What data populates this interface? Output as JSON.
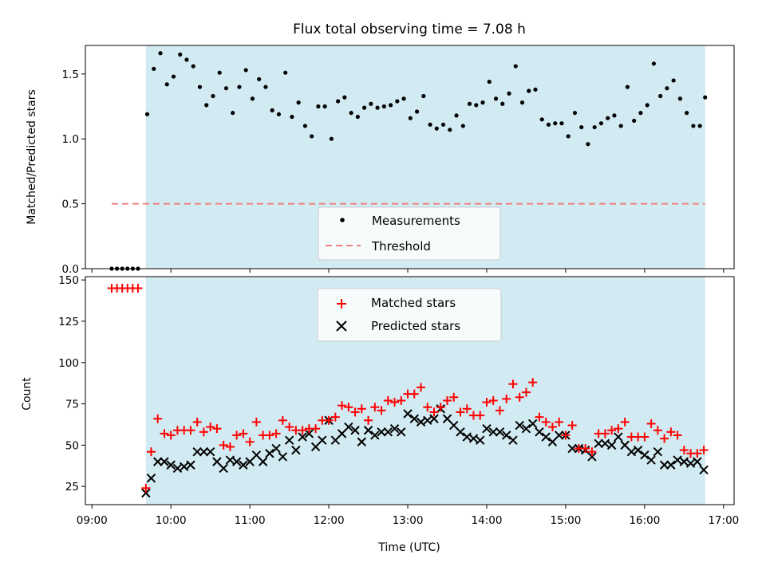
{
  "chart_data": [
    {
      "type": "scatter",
      "title": "Flux total observing time = 7.08 h",
      "xlabel": "",
      "ylabel": "Matched/Predicted stars",
      "ylim": [
        0,
        1.72
      ],
      "yticks": [
        "0.0",
        "0.5",
        "1.0",
        "1.5"
      ],
      "ytick_values": [
        0,
        0.5,
        1.0,
        1.5
      ],
      "shaded_interval": [
        "09:41",
        "16:46"
      ],
      "shaded_color": "#add8e6",
      "legend_position": "lower-center",
      "series": [
        {
          "name": "Measurements",
          "marker": "dot",
          "color": "#000000",
          "x": [
            "09:15",
            "09:19",
            "09:23",
            "09:27",
            "09:31",
            "09:35",
            "09:42",
            "09:47",
            "09:52",
            "09:57",
            "10:02",
            "10:07",
            "10:12",
            "10:17",
            "10:22",
            "10:27",
            "10:32",
            "10:37",
            "10:42",
            "10:47",
            "10:52",
            "10:57",
            "11:02",
            "11:07",
            "11:12",
            "11:17",
            "11:22",
            "11:27",
            "11:32",
            "11:37",
            "11:42",
            "11:47",
            "11:52",
            "11:57",
            "12:02",
            "12:07",
            "12:12",
            "12:17",
            "12:22",
            "12:27",
            "12:32",
            "12:37",
            "12:42",
            "12:47",
            "12:52",
            "12:57",
            "13:02",
            "13:07",
            "13:12",
            "13:17",
            "13:22",
            "13:27",
            "13:32",
            "13:37",
            "13:42",
            "13:47",
            "13:52",
            "13:57",
            "14:02",
            "14:07",
            "14:12",
            "14:17",
            "14:22",
            "14:27",
            "14:32",
            "14:37",
            "14:42",
            "14:47",
            "14:52",
            "14:57",
            "15:02",
            "15:07",
            "15:12",
            "15:17",
            "15:22",
            "15:27",
            "15:32",
            "15:37",
            "15:42",
            "15:47",
            "15:52",
            "15:57",
            "16:02",
            "16:07",
            "16:12",
            "16:17",
            "16:22",
            "16:27",
            "16:32",
            "16:37",
            "16:42",
            "16:46"
          ],
          "y": [
            0,
            0,
            0,
            0,
            0,
            0,
            1.19,
            1.54,
            1.66,
            1.42,
            1.48,
            1.65,
            1.61,
            1.56,
            1.4,
            1.26,
            1.33,
            1.51,
            1.39,
            1.2,
            1.4,
            1.53,
            1.31,
            1.46,
            1.4,
            1.22,
            1.19,
            1.51,
            1.17,
            1.28,
            1.1,
            1.02,
            1.25,
            1.25,
            1.0,
            1.29,
            1.32,
            1.2,
            1.17,
            1.24,
            1.27,
            1.24,
            1.25,
            1.26,
            1.29,
            1.31,
            1.16,
            1.21,
            1.33,
            1.11,
            1.08,
            1.11,
            1.07,
            1.18,
            1.1,
            1.27,
            1.26,
            1.28,
            1.44,
            1.31,
            1.27,
            1.35,
            1.56,
            1.28,
            1.37,
            1.38,
            1.15,
            1.11,
            1.12,
            1.12,
            1.02,
            1.2,
            1.09,
            0.96,
            1.09,
            1.12,
            1.16,
            1.18,
            1.1,
            1.4,
            1.14,
            1.2,
            1.26,
            1.58,
            1.33,
            1.39,
            1.45,
            1.31,
            1.2,
            1.1,
            1.1,
            1.32
          ]
        },
        {
          "name": "Threshold",
          "marker": "dashed-line",
          "color": "#f08080",
          "x": [
            "09:15",
            "16:46"
          ],
          "y": [
            0.5,
            0.5
          ]
        }
      ]
    },
    {
      "type": "scatter",
      "title": "",
      "xlabel": "Time (UTC)",
      "ylabel": "Count",
      "ylim": [
        14,
        152
      ],
      "yticks": [
        "25",
        "50",
        "75",
        "100",
        "125",
        "150"
      ],
      "ytick_values": [
        25,
        50,
        75,
        100,
        125,
        150
      ],
      "xlim": [
        "08:55",
        "17:08"
      ],
      "xticks": [
        "09:00",
        "10:00",
        "11:00",
        "12:00",
        "13:00",
        "14:00",
        "15:00",
        "16:00",
        "17:00"
      ],
      "shaded_interval": [
        "09:41",
        "16:46"
      ],
      "shaded_color": "#add8e6",
      "legend_position": "upper-center",
      "series": [
        {
          "name": "Matched stars",
          "marker": "plus",
          "color": "#ff0000",
          "x": [
            "09:15",
            "09:19",
            "09:23",
            "09:27",
            "09:31",
            "09:35",
            "09:41",
            "09:45",
            "09:50",
            "09:55",
            "10:00",
            "10:05",
            "10:10",
            "10:15",
            "10:20",
            "10:25",
            "10:30",
            "10:35",
            "10:40",
            "10:45",
            "10:50",
            "10:55",
            "11:00",
            "11:05",
            "11:10",
            "11:15",
            "11:20",
            "11:25",
            "11:30",
            "11:35",
            "11:40",
            "11:45",
            "11:50",
            "11:55",
            "12:00",
            "12:05",
            "12:10",
            "12:15",
            "12:20",
            "12:25",
            "12:30",
            "12:35",
            "12:40",
            "12:45",
            "12:50",
            "12:55",
            "13:00",
            "13:05",
            "13:10",
            "13:15",
            "13:20",
            "13:25",
            "13:30",
            "13:35",
            "13:40",
            "13:45",
            "13:50",
            "13:55",
            "14:00",
            "14:05",
            "14:10",
            "14:15",
            "14:20",
            "14:25",
            "14:30",
            "14:35",
            "14:40",
            "14:45",
            "14:50",
            "14:55",
            "15:00",
            "15:05",
            "15:10",
            "15:15",
            "15:20",
            "15:25",
            "15:30",
            "15:35",
            "15:40",
            "15:45",
            "15:50",
            "15:55",
            "16:00",
            "16:05",
            "16:10",
            "16:15",
            "16:20",
            "16:25",
            "16:30",
            "16:35",
            "16:40",
            "16:45"
          ],
          "y": [
            145,
            145,
            145,
            145,
            145,
            145,
            24,
            46,
            66,
            57,
            56,
            59,
            59,
            59,
            64,
            58,
            61,
            60,
            50,
            49,
            56,
            57,
            52,
            64,
            56,
            56,
            57,
            65,
            61,
            59,
            59,
            60,
            60,
            65,
            65,
            67,
            74,
            73,
            70,
            72,
            65,
            73,
            71,
            77,
            76,
            77,
            81,
            81,
            85,
            73,
            70,
            73,
            77,
            79,
            70,
            72,
            68,
            68,
            76,
            77,
            71,
            78,
            87,
            79,
            82,
            88,
            67,
            64,
            61,
            64,
            56,
            62,
            48,
            48,
            46,
            57,
            57,
            59,
            60,
            64,
            55,
            55,
            55,
            63,
            59,
            54,
            58,
            56,
            47,
            45,
            45,
            47
          ]
        },
        {
          "name": "Predicted stars",
          "marker": "x",
          "color": "#000000",
          "x": [
            "09:41",
            "09:45",
            "09:50",
            "09:55",
            "10:00",
            "10:05",
            "10:10",
            "10:15",
            "10:20",
            "10:25",
            "10:30",
            "10:35",
            "10:40",
            "10:45",
            "10:50",
            "10:55",
            "11:00",
            "11:05",
            "11:10",
            "11:15",
            "11:20",
            "11:25",
            "11:30",
            "11:35",
            "11:40",
            "11:45",
            "11:50",
            "11:55",
            "12:00",
            "12:05",
            "12:10",
            "12:15",
            "12:20",
            "12:25",
            "12:30",
            "12:35",
            "12:40",
            "12:45",
            "12:50",
            "12:55",
            "13:00",
            "13:05",
            "13:10",
            "13:15",
            "13:20",
            "13:25",
            "13:30",
            "13:35",
            "13:40",
            "13:45",
            "13:50",
            "13:55",
            "14:00",
            "14:05",
            "14:10",
            "14:15",
            "14:20",
            "14:25",
            "14:30",
            "14:35",
            "14:40",
            "14:45",
            "14:50",
            "14:55",
            "15:00",
            "15:05",
            "15:10",
            "15:15",
            "15:20",
            "15:25",
            "15:30",
            "15:35",
            "15:40",
            "15:45",
            "15:50",
            "15:55",
            "16:00",
            "16:05",
            "16:10",
            "16:15",
            "16:20",
            "16:25",
            "16:30",
            "16:35",
            "16:40",
            "16:45"
          ],
          "y": [
            21,
            30,
            40,
            40,
            38,
            36,
            37,
            38,
            46,
            46,
            46,
            40,
            36,
            41,
            40,
            38,
            40,
            44,
            40,
            45,
            48,
            43,
            53,
            47,
            55,
            57,
            49,
            53,
            65,
            53,
            57,
            61,
            59,
            52,
            59,
            56,
            58,
            58,
            60,
            58,
            69,
            66,
            64,
            65,
            66,
            72,
            66,
            62,
            58,
            55,
            54,
            53,
            60,
            58,
            58,
            56,
            53,
            62,
            60,
            63,
            58,
            55,
            52,
            56,
            56,
            48,
            48,
            47,
            43,
            51,
            51,
            50,
            55,
            50,
            46,
            47,
            44,
            41,
            46,
            38,
            38,
            41,
            40,
            39,
            40,
            35
          ]
        }
      ]
    }
  ]
}
